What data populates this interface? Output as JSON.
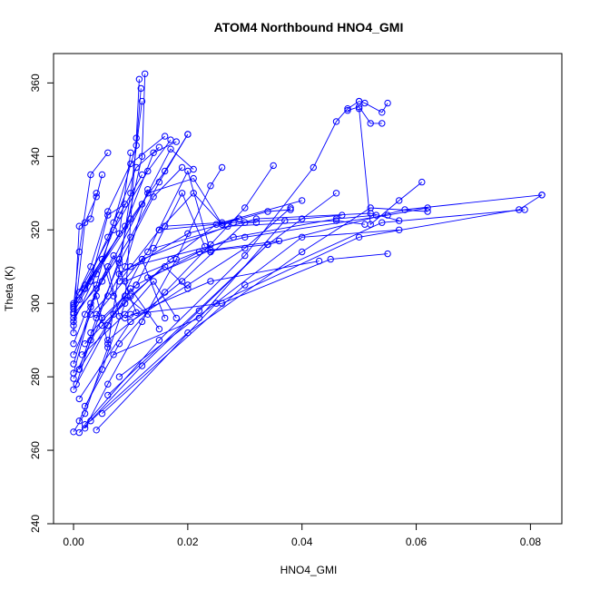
{
  "chart_data": {
    "type": "line",
    "title": "ATOM4 Northbound HNO4_GMI",
    "xlabel": "HNO4_GMI",
    "ylabel": "Theta (K)",
    "xlim": [
      -0.0035,
      0.0855
    ],
    "ylim": [
      240,
      368
    ],
    "xticks": [
      0.0,
      0.02,
      0.04,
      0.06,
      0.08
    ],
    "xtick_labels": [
      "0.00",
      "0.02",
      "0.04",
      "0.06",
      "0.08"
    ],
    "yticks": [
      240,
      260,
      280,
      300,
      320,
      340,
      360
    ],
    "ytick_labels": [
      "240",
      "260",
      "280",
      "300",
      "320",
      "340",
      "360"
    ],
    "grid": false,
    "color": "#0000ff",
    "series": [
      {
        "x": [
          0.0,
          0.002,
          0.006,
          0.01,
          0.012
        ],
        "y": [
          265.0,
          270.0,
          288.0,
          330.0,
          355.0
        ]
      },
      {
        "x": [
          0.001,
          0.005,
          0.009,
          0.011,
          0.0115
        ],
        "y": [
          268.0,
          282.0,
          300.0,
          345.0,
          361.0
        ]
      },
      {
        "x": [
          0.0005,
          0.003,
          0.008,
          0.012,
          0.0125
        ],
        "y": [
          278.0,
          290.0,
          312.0,
          340.0,
          362.5
        ]
      },
      {
        "x": [
          0.0,
          0.004,
          0.007,
          0.011,
          0.0118
        ],
        "y": [
          296.0,
          305.0,
          322.0,
          343.0,
          358.5
        ]
      },
      {
        "x": [
          0.0,
          0.003,
          0.006,
          0.01,
          0.016
        ],
        "y": [
          300.0,
          310.0,
          325.0,
          338.0,
          345.5
        ]
      },
      {
        "x": [
          0.0,
          0.005,
          0.01,
          0.015,
          0.02
        ],
        "y": [
          297.0,
          306.0,
          318.0,
          333.0,
          346.0
        ]
      },
      {
        "x": [
          0.001,
          0.004,
          0.008,
          0.014,
          0.019
        ],
        "y": [
          282.0,
          296.0,
          311.0,
          329.0,
          337.0
        ]
      },
      {
        "x": [
          0.0,
          0.001,
          0.003,
          0.006
        ],
        "y": [
          299.0,
          314.0,
          335.0,
          341.0
        ]
      },
      {
        "x": [
          0.0,
          0.002,
          0.004,
          0.005
        ],
        "y": [
          294.0,
          322.0,
          329.0,
          335.0
        ]
      },
      {
        "x": [
          0.0,
          0.001,
          0.003,
          0.004
        ],
        "y": [
          292.0,
          321.0,
          323.0,
          330.0
        ]
      },
      {
        "x": [
          0.0,
          0.003,
          0.006,
          0.009,
          0.013
        ],
        "y": [
          286.0,
          297.0,
          302.0,
          310.0,
          331.0
        ]
      },
      {
        "x": [
          0.002,
          0.006,
          0.012,
          0.018,
          0.024,
          0.026
        ],
        "y": [
          266.0,
          278.0,
          295.0,
          312.0,
          332.0,
          337.0
        ]
      },
      {
        "x": [
          0.002,
          0.008,
          0.016,
          0.024,
          0.03,
          0.035
        ],
        "y": [
          272.0,
          289.0,
          303.0,
          316.0,
          326.0,
          337.5
        ]
      },
      {
        "x": [
          0.001,
          0.01,
          0.02,
          0.03,
          0.038
        ],
        "y": [
          274.0,
          295.0,
          305.0,
          315.0,
          326.0
        ]
      },
      {
        "x": [
          0.001,
          0.012,
          0.022,
          0.034,
          0.046
        ],
        "y": [
          264.8,
          283.0,
          298.0,
          316.0,
          330.0
        ]
      },
      {
        "x": [
          0.002,
          0.015,
          0.03,
          0.042,
          0.046,
          0.048,
          0.05
        ],
        "y": [
          267.0,
          290.0,
          313.0,
          337.0,
          349.5,
          353.0,
          355.0
        ]
      },
      {
        "x": [
          0.05,
          0.051,
          0.054,
          0.055
        ],
        "y": [
          355.0,
          354.5,
          352.0,
          354.5
        ]
      },
      {
        "x": [
          0.048,
          0.05,
          0.052,
          0.054
        ],
        "y": [
          352.5,
          353.5,
          349.0,
          349.0
        ]
      },
      {
        "x": [
          0.05,
          0.052,
          0.057,
          0.061
        ],
        "y": [
          353.0,
          321.5,
          328.0,
          333.0
        ]
      },
      {
        "x": [
          0.003,
          0.02,
          0.04,
          0.052,
          0.062
        ],
        "y": [
          268.0,
          292.0,
          314.0,
          326.0,
          325.0
        ]
      },
      {
        "x": [
          0.004,
          0.025,
          0.05,
          0.078,
          0.082
        ],
        "y": [
          265.5,
          300.0,
          318.0,
          325.5,
          329.5
        ]
      },
      {
        "x": [
          0.005,
          0.03,
          0.054,
          0.079
        ],
        "y": [
          270.0,
          305.0,
          322.0,
          325.5
        ]
      },
      {
        "x": [
          0.006,
          0.034,
          0.058,
          0.082
        ],
        "y": [
          275.0,
          316.0,
          325.5,
          329.5
        ]
      },
      {
        "x": [
          0.008,
          0.04,
          0.057
        ],
        "y": [
          280.0,
          318.0,
          320.0
        ]
      },
      {
        "x": [
          0.01,
          0.026,
          0.045,
          0.055
        ],
        "y": [
          297.0,
          300.0,
          312.0,
          313.5
        ]
      },
      {
        "x": [
          0.009,
          0.024,
          0.043
        ],
        "y": [
          296.0,
          306.0,
          311.5
        ]
      },
      {
        "x": [
          0.007,
          0.022,
          0.037
        ],
        "y": [
          286.0,
          296.0,
          322.5
        ]
      },
      {
        "x": [
          0.006,
          0.019,
          0.03,
          0.032
        ],
        "y": [
          290.0,
          306.0,
          322.0,
          322.0
        ]
      },
      {
        "x": [
          0.005,
          0.017,
          0.025,
          0.029
        ],
        "y": [
          294.0,
          312.0,
          321.5,
          323.0
        ]
      },
      {
        "x": [
          0.008,
          0.015,
          0.021,
          0.026
        ],
        "y": [
          306.0,
          320.0,
          330.0,
          321.5
        ]
      },
      {
        "x": [
          0.004,
          0.013,
          0.02,
          0.024
        ],
        "y": [
          297.0,
          314.0,
          336.0,
          314.0
        ]
      },
      {
        "x": [
          0.003,
          0.011,
          0.019,
          0.023
        ],
        "y": [
          292.0,
          305.0,
          330.0,
          315.5
        ]
      },
      {
        "x": [
          0.002,
          0.01,
          0.016,
          0.02
        ],
        "y": [
          289.0,
          302.0,
          310.0,
          304.0
        ]
      },
      {
        "x": [
          0.0015,
          0.009,
          0.014,
          0.018
        ],
        "y": [
          286.0,
          297.0,
          306.0,
          296.0
        ]
      },
      {
        "x": [
          0.001,
          0.007,
          0.012,
          0.016
        ],
        "y": [
          282.0,
          297.0,
          312.0,
          296.0
        ]
      },
      {
        "x": [
          0.0,
          0.006,
          0.01,
          0.015
        ],
        "y": [
          276.5,
          294.0,
          304.0,
          293.0
        ]
      },
      {
        "x": [
          0.0,
          0.005,
          0.009,
          0.013
        ],
        "y": [
          279.5,
          296.0,
          302.0,
          297.0
        ]
      },
      {
        "x": [
          0.0,
          0.004,
          0.007,
          0.011
        ],
        "y": [
          281.0,
          304.0,
          313.0,
          297.5
        ]
      },
      {
        "x": [
          0.0,
          0.003,
          0.006,
          0.008
        ],
        "y": [
          283.5,
          299.0,
          310.0,
          296.5
        ]
      },
      {
        "x": [
          0.0,
          0.002,
          0.004,
          0.006
        ],
        "y": [
          289.0,
          297.0,
          302.0,
          289.0
        ]
      },
      {
        "x": [
          0.0,
          0.002,
          0.005,
          0.007
        ],
        "y": [
          298.5,
          304.0,
          312.0,
          302.0
        ]
      },
      {
        "x": [
          0.0,
          0.003,
          0.006,
          0.009
        ],
        "y": [
          297.5,
          306.0,
          324.0,
          327.0
        ]
      },
      {
        "x": [
          0.0,
          0.004,
          0.008,
          0.01
        ],
        "y": [
          295.0,
          308.0,
          319.0,
          341.0
        ]
      },
      {
        "x": [
          0.0,
          0.005,
          0.008,
          0.012
        ],
        "y": [
          299.5,
          312.0,
          324.0,
          335.0
        ]
      },
      {
        "x": [
          0.001,
          0.006,
          0.011,
          0.015
        ],
        "y": [
          301.0,
          318.0,
          337.0,
          342.5
        ]
      },
      {
        "x": [
          0.001,
          0.007,
          0.013,
          0.017
        ],
        "y": [
          303.0,
          320.0,
          336.0,
          344.5
        ]
      },
      {
        "x": [
          0.002,
          0.009,
          0.014,
          0.018
        ],
        "y": [
          304.0,
          321.0,
          341.0,
          344.0
        ]
      },
      {
        "x": [
          0.002,
          0.01,
          0.016,
          0.02
        ],
        "y": [
          305.0,
          323.0,
          336.0,
          346.0
        ]
      },
      {
        "x": [
          0.003,
          0.012,
          0.017,
          0.021
        ],
        "y": [
          306.0,
          327.0,
          342.0,
          336.5
        ]
      },
      {
        "x": [
          0.003,
          0.013,
          0.021,
          0.026
        ],
        "y": [
          300.0,
          330.0,
          334.0,
          321.5
        ]
      },
      {
        "x": [
          0.015,
          0.028,
          0.04,
          0.047
        ],
        "y": [
          320.0,
          322.0,
          323.0,
          324.0
        ]
      },
      {
        "x": [
          0.01,
          0.03,
          0.055,
          0.062
        ],
        "y": [
          310.0,
          318.0,
          324.0,
          326.0
        ]
      },
      {
        "x": [
          0.012,
          0.027,
          0.046,
          0.051
        ],
        "y": [
          312.0,
          321.0,
          322.5,
          321.5
        ]
      },
      {
        "x": [
          0.014,
          0.032,
          0.052,
          0.057
        ],
        "y": [
          315.0,
          323.0,
          324.5,
          322.5
        ]
      },
      {
        "x": [
          0.009,
          0.028,
          0.046,
          0.053
        ],
        "y": [
          306.0,
          318.0,
          323.0,
          324.0
        ]
      },
      {
        "x": [
          0.013,
          0.024,
          0.036
        ],
        "y": [
          307.0,
          314.5,
          317.0
        ]
      },
      {
        "x": [
          0.011,
          0.022,
          0.034
        ],
        "y": [
          305.0,
          314.0,
          316.0
        ]
      },
      {
        "x": [
          0.008,
          0.02,
          0.034,
          0.038
        ],
        "y": [
          308.0,
          319.0,
          325.0,
          325.5
        ]
      },
      {
        "x": [
          0.016,
          0.026,
          0.04
        ],
        "y": [
          321.0,
          322.0,
          328.0
        ]
      }
    ]
  }
}
